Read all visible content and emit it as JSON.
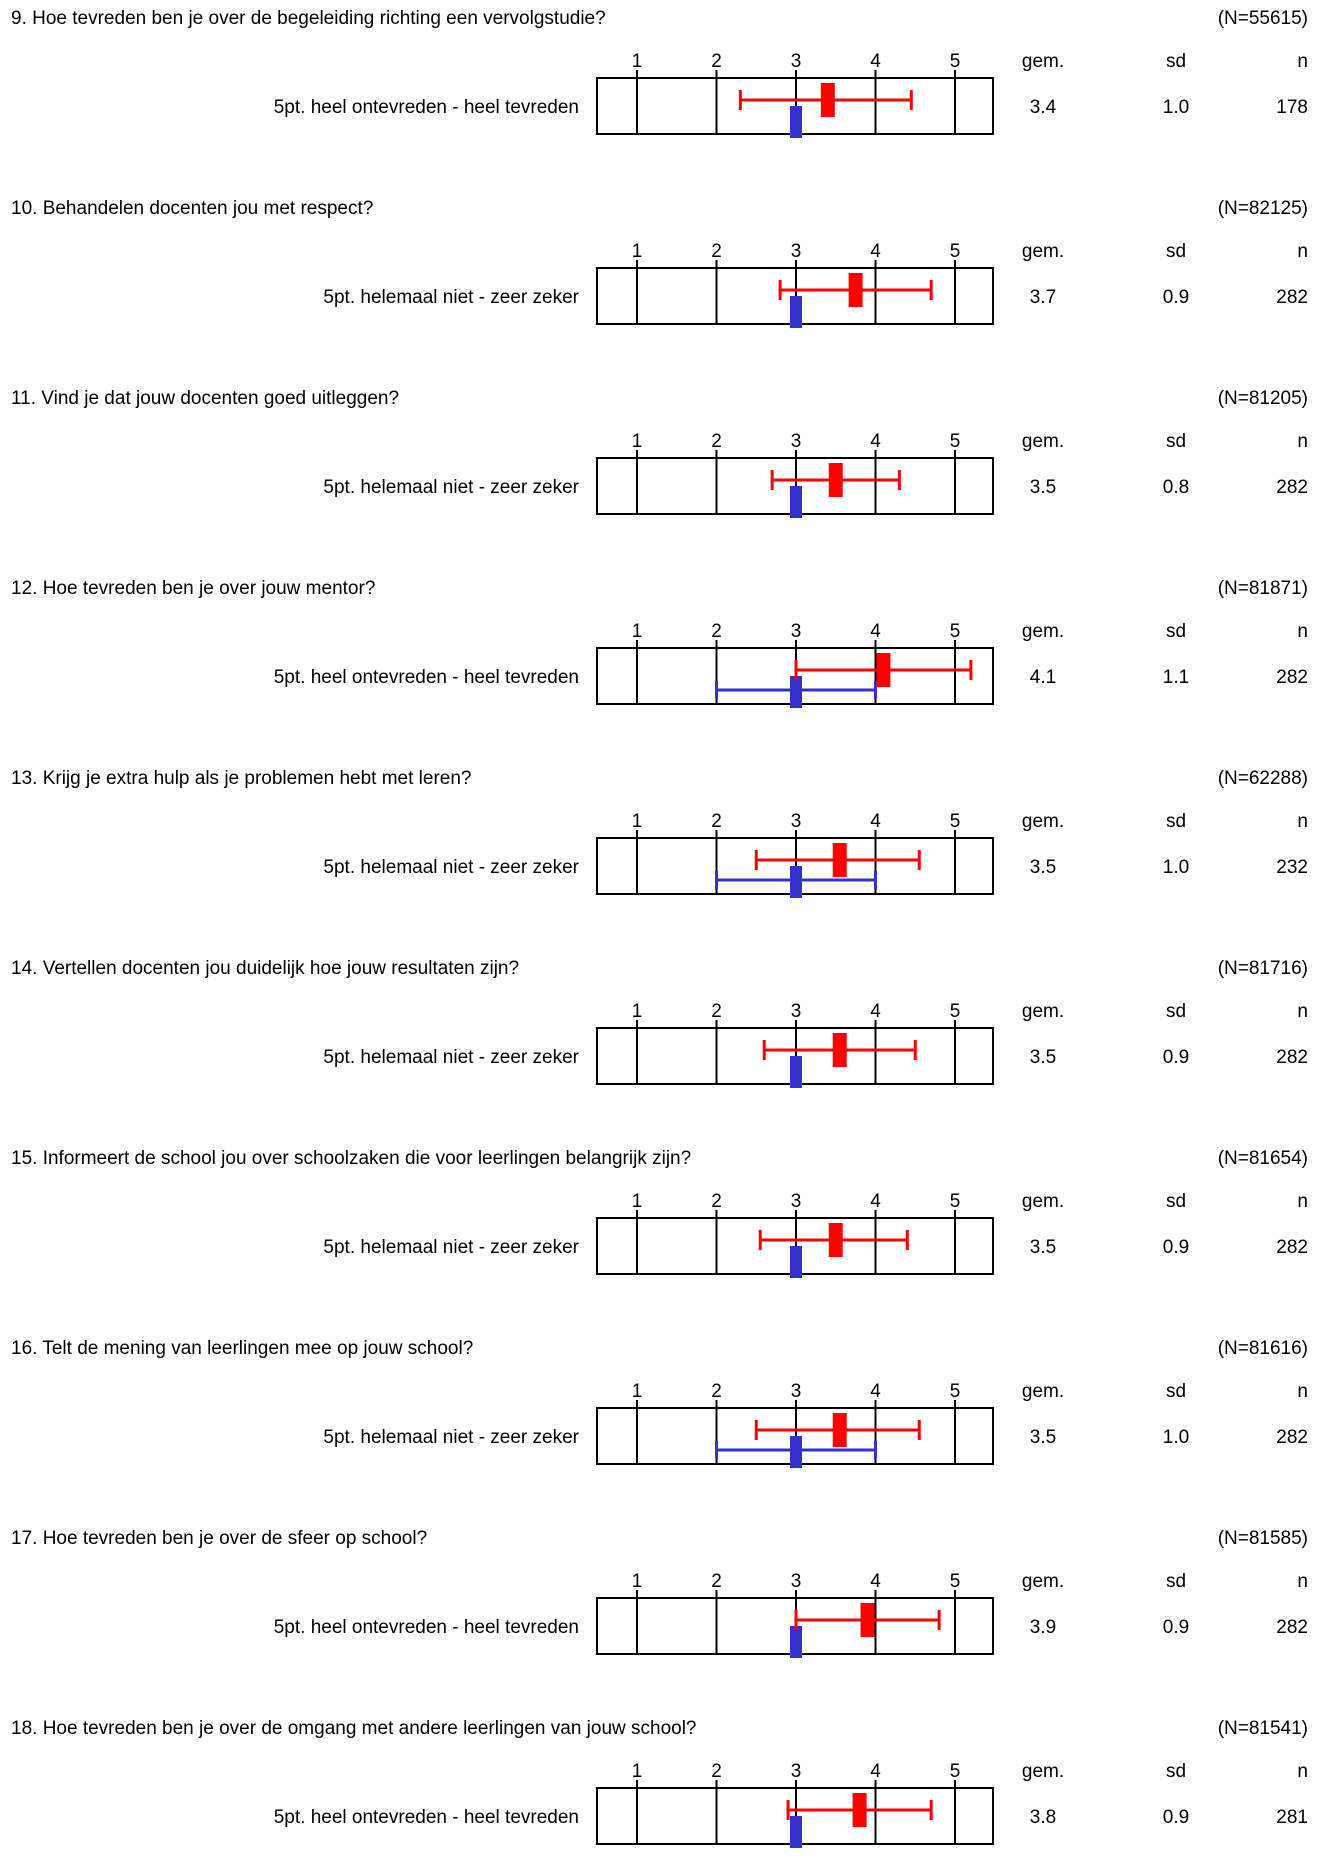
{
  "colors": {
    "school": "#ff0000",
    "benchmark": "#3333cc",
    "frame": "#000000"
  },
  "stat_headers": {
    "mean": "gem.",
    "sd": "sd",
    "n": "n"
  },
  "chart_data": [
    {
      "type": "errorbar",
      "title": "9. Hoe tevreden ben je over de begeleiding richting een vervolgstudie?",
      "total_n": "(N=55615)",
      "scale_label": "5pt. heel ontevreden - heel tevreden",
      "ticks": [
        "1",
        "2",
        "3",
        "4",
        "5"
      ],
      "xlim": [
        0.5,
        5.5
      ],
      "school": {
        "mean": 3.4,
        "low": 2.3,
        "high": 4.45
      },
      "benchmark": {
        "mean": 3.0,
        "low": null,
        "high": null
      },
      "mean_text": "3.4",
      "sd_text": "1.0",
      "n_text": "178"
    },
    {
      "type": "errorbar",
      "title": "10. Behandelen docenten jou met respect?",
      "total_n": "(N=82125)",
      "scale_label": "5pt. helemaal niet - zeer zeker",
      "ticks": [
        "1",
        "2",
        "3",
        "4",
        "5"
      ],
      "xlim": [
        0.5,
        5.5
      ],
      "school": {
        "mean": 3.75,
        "low": 2.8,
        "high": 4.7
      },
      "benchmark": {
        "mean": 3.0,
        "low": null,
        "high": null
      },
      "mean_text": "3.7",
      "sd_text": "0.9",
      "n_text": "282"
    },
    {
      "type": "errorbar",
      "title": "11. Vind je dat jouw docenten goed uitleggen?",
      "total_n": "(N=81205)",
      "scale_label": "5pt. helemaal niet - zeer zeker",
      "ticks": [
        "1",
        "2",
        "3",
        "4",
        "5"
      ],
      "xlim": [
        0.5,
        5.5
      ],
      "school": {
        "mean": 3.5,
        "low": 2.7,
        "high": 4.3
      },
      "benchmark": {
        "mean": 3.0,
        "low": null,
        "high": null
      },
      "mean_text": "3.5",
      "sd_text": "0.8",
      "n_text": "282"
    },
    {
      "type": "errorbar",
      "title": "12. Hoe tevreden ben je over jouw mentor?",
      "total_n": "(N=81871)",
      "scale_label": "5pt. heel ontevreden - heel tevreden",
      "ticks": [
        "1",
        "2",
        "3",
        "4",
        "5"
      ],
      "xlim": [
        0.5,
        5.5
      ],
      "school": {
        "mean": 4.1,
        "low": 3.0,
        "high": 5.2
      },
      "benchmark": {
        "mean": 3.0,
        "low": 2.0,
        "high": 4.0
      },
      "mean_text": "4.1",
      "sd_text": "1.1",
      "n_text": "282"
    },
    {
      "type": "errorbar",
      "title": "13. Krijg je extra hulp als je problemen hebt met leren?",
      "total_n": "(N=62288)",
      "scale_label": "5pt. helemaal niet - zeer zeker",
      "ticks": [
        "1",
        "2",
        "3",
        "4",
        "5"
      ],
      "xlim": [
        0.5,
        5.5
      ],
      "school": {
        "mean": 3.55,
        "low": 2.5,
        "high": 4.55
      },
      "benchmark": {
        "mean": 3.0,
        "low": 2.0,
        "high": 4.0
      },
      "mean_text": "3.5",
      "sd_text": "1.0",
      "n_text": "232"
    },
    {
      "type": "errorbar",
      "title": "14. Vertellen docenten jou duidelijk hoe jouw resultaten zijn?",
      "total_n": "(N=81716)",
      "scale_label": "5pt. helemaal niet - zeer zeker",
      "ticks": [
        "1",
        "2",
        "3",
        "4",
        "5"
      ],
      "xlim": [
        0.5,
        5.5
      ],
      "school": {
        "mean": 3.55,
        "low": 2.6,
        "high": 4.5
      },
      "benchmark": {
        "mean": 3.0,
        "low": null,
        "high": null
      },
      "mean_text": "3.5",
      "sd_text": "0.9",
      "n_text": "282"
    },
    {
      "type": "errorbar",
      "title": "15. Informeert de school jou over schoolzaken die voor leerlingen belangrijk zijn?",
      "total_n": "(N=81654)",
      "scale_label": "5pt. helemaal niet - zeer zeker",
      "ticks": [
        "1",
        "2",
        "3",
        "4",
        "5"
      ],
      "xlim": [
        0.5,
        5.5
      ],
      "school": {
        "mean": 3.5,
        "low": 2.55,
        "high": 4.4
      },
      "benchmark": {
        "mean": 3.0,
        "low": null,
        "high": null
      },
      "mean_text": "3.5",
      "sd_text": "0.9",
      "n_text": "282"
    },
    {
      "type": "errorbar",
      "title": "16. Telt de mening van leerlingen mee op jouw school?",
      "total_n": "(N=81616)",
      "scale_label": "5pt. helemaal niet - zeer zeker",
      "ticks": [
        "1",
        "2",
        "3",
        "4",
        "5"
      ],
      "xlim": [
        0.5,
        5.5
      ],
      "school": {
        "mean": 3.55,
        "low": 2.5,
        "high": 4.55
      },
      "benchmark": {
        "mean": 3.0,
        "low": 2.0,
        "high": 4.0
      },
      "mean_text": "3.5",
      "sd_text": "1.0",
      "n_text": "282"
    },
    {
      "type": "errorbar",
      "title": "17. Hoe tevreden ben je over de sfeer op school?",
      "total_n": "(N=81585)",
      "scale_label": "5pt. heel ontevreden - heel tevreden",
      "ticks": [
        "1",
        "2",
        "3",
        "4",
        "5"
      ],
      "xlim": [
        0.5,
        5.5
      ],
      "school": {
        "mean": 3.9,
        "low": 3.0,
        "high": 4.8
      },
      "benchmark": {
        "mean": 3.0,
        "low": null,
        "high": null
      },
      "mean_text": "3.9",
      "sd_text": "0.9",
      "n_text": "282"
    },
    {
      "type": "errorbar",
      "title": "18. Hoe tevreden ben je over de omgang met andere leerlingen van jouw school?",
      "total_n": "(N=81541)",
      "scale_label": "5pt. heel ontevreden - heel tevreden",
      "ticks": [
        "1",
        "2",
        "3",
        "4",
        "5"
      ],
      "xlim": [
        0.5,
        5.5
      ],
      "school": {
        "mean": 3.8,
        "low": 2.9,
        "high": 4.7
      },
      "benchmark": {
        "mean": 3.0,
        "low": null,
        "high": null
      },
      "mean_text": "3.8",
      "sd_text": "0.9",
      "n_text": "281"
    }
  ]
}
